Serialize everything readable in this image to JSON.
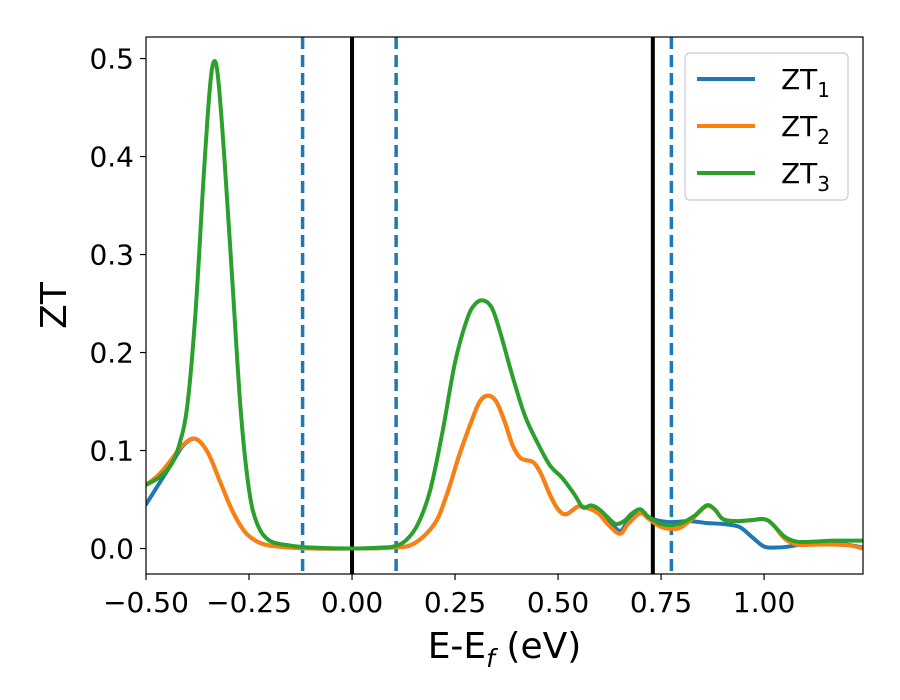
{
  "chart_data": {
    "type": "line",
    "title": "",
    "xlabel": {
      "base": "E-E",
      "sub": "f",
      "unit": " (eV)"
    },
    "ylabel": "ZT",
    "xlim": [
      -0.5,
      1.24
    ],
    "ylim": [
      -0.026,
      0.522
    ],
    "x_ticks": [
      -0.5,
      -0.25,
      0.0,
      0.25,
      0.5,
      0.75,
      1.0
    ],
    "x_tick_labels": [
      "−0.50",
      "−0.25",
      "0.00",
      "0.25",
      "0.50",
      "0.75",
      "1.00"
    ],
    "y_ticks": [
      0.0,
      0.1,
      0.2,
      0.3,
      0.4,
      0.5
    ],
    "y_tick_labels": [
      "0.0",
      "0.1",
      "0.2",
      "0.3",
      "0.4",
      "0.5"
    ],
    "grid": false,
    "legend_position": "top-right",
    "vlines": [
      {
        "x": -0.12,
        "style": "dashed",
        "color": "#1f77b4"
      },
      {
        "x": 0.0,
        "style": "solid",
        "color": "#000000"
      },
      {
        "x": 0.107,
        "style": "dashed",
        "color": "#1f77b4"
      },
      {
        "x": 0.73,
        "style": "solid",
        "color": "#000000"
      },
      {
        "x": 0.775,
        "style": "dashed",
        "color": "#1f77b4"
      }
    ],
    "series": [
      {
        "name": "ZT1",
        "label_base": "ZT",
        "label_sub": "1",
        "color": "#1f77b4",
        "points": [
          [
            -0.5,
            0.045
          ],
          [
            -0.47,
            0.065
          ],
          [
            -0.44,
            0.085
          ],
          [
            -0.41,
            0.105
          ],
          [
            -0.38,
            0.112
          ],
          [
            -0.35,
            0.098
          ],
          [
            -0.32,
            0.068
          ],
          [
            -0.29,
            0.038
          ],
          [
            -0.26,
            0.017
          ],
          [
            -0.23,
            0.007
          ],
          [
            -0.2,
            0.003
          ],
          [
            -0.15,
            0.001
          ],
          [
            -0.1,
            0.0
          ],
          [
            0.0,
            0.0
          ],
          [
            0.1,
            0.001
          ],
          [
            0.15,
            0.005
          ],
          [
            0.2,
            0.025
          ],
          [
            0.23,
            0.055
          ],
          [
            0.26,
            0.095
          ],
          [
            0.29,
            0.13
          ],
          [
            0.31,
            0.15
          ],
          [
            0.33,
            0.156
          ],
          [
            0.35,
            0.15
          ],
          [
            0.37,
            0.13
          ],
          [
            0.39,
            0.105
          ],
          [
            0.41,
            0.092
          ],
          [
            0.44,
            0.088
          ],
          [
            0.46,
            0.075
          ],
          [
            0.48,
            0.055
          ],
          [
            0.5,
            0.04
          ],
          [
            0.52,
            0.035
          ],
          [
            0.55,
            0.043
          ],
          [
            0.58,
            0.04
          ],
          [
            0.6,
            0.038
          ],
          [
            0.62,
            0.03
          ],
          [
            0.65,
            0.018
          ],
          [
            0.67,
            0.028
          ],
          [
            0.7,
            0.036
          ],
          [
            0.73,
            0.03
          ],
          [
            0.77,
            0.027
          ],
          [
            0.82,
            0.028
          ],
          [
            0.86,
            0.026
          ],
          [
            0.9,
            0.025
          ],
          [
            0.94,
            0.022
          ],
          [
            0.97,
            0.012
          ],
          [
            1.0,
            0.002
          ],
          [
            1.03,
            0.001
          ],
          [
            1.06,
            0.002
          ],
          [
            1.1,
            0.005
          ],
          [
            1.15,
            0.006
          ],
          [
            1.2,
            0.004
          ],
          [
            1.24,
            0.001
          ]
        ]
      },
      {
        "name": "ZT2",
        "label_base": "ZT",
        "label_sub": "2",
        "color": "#ff7f0e",
        "points": [
          [
            -0.5,
            0.065
          ],
          [
            -0.47,
            0.075
          ],
          [
            -0.44,
            0.09
          ],
          [
            -0.41,
            0.106
          ],
          [
            -0.38,
            0.112
          ],
          [
            -0.35,
            0.098
          ],
          [
            -0.32,
            0.068
          ],
          [
            -0.29,
            0.038
          ],
          [
            -0.26,
            0.017
          ],
          [
            -0.23,
            0.007
          ],
          [
            -0.2,
            0.003
          ],
          [
            -0.15,
            0.001
          ],
          [
            -0.1,
            0.0
          ],
          [
            0.0,
            0.0
          ],
          [
            0.1,
            0.001
          ],
          [
            0.15,
            0.005
          ],
          [
            0.2,
            0.025
          ],
          [
            0.23,
            0.055
          ],
          [
            0.26,
            0.095
          ],
          [
            0.29,
            0.13
          ],
          [
            0.31,
            0.15
          ],
          [
            0.33,
            0.156
          ],
          [
            0.35,
            0.15
          ],
          [
            0.37,
            0.13
          ],
          [
            0.39,
            0.105
          ],
          [
            0.41,
            0.092
          ],
          [
            0.44,
            0.088
          ],
          [
            0.46,
            0.075
          ],
          [
            0.48,
            0.055
          ],
          [
            0.5,
            0.04
          ],
          [
            0.52,
            0.035
          ],
          [
            0.55,
            0.043
          ],
          [
            0.58,
            0.04
          ],
          [
            0.6,
            0.035
          ],
          [
            0.62,
            0.025
          ],
          [
            0.65,
            0.015
          ],
          [
            0.67,
            0.025
          ],
          [
            0.7,
            0.036
          ],
          [
            0.72,
            0.03
          ],
          [
            0.75,
            0.022
          ],
          [
            0.78,
            0.02
          ],
          [
            0.8,
            0.022
          ],
          [
            0.83,
            0.032
          ],
          [
            0.86,
            0.043
          ],
          [
            0.88,
            0.04
          ],
          [
            0.9,
            0.03
          ],
          [
            0.93,
            0.028
          ],
          [
            0.97,
            0.029
          ],
          [
            1.0,
            0.03
          ],
          [
            1.02,
            0.025
          ],
          [
            1.05,
            0.01
          ],
          [
            1.08,
            0.004
          ],
          [
            1.12,
            0.004
          ],
          [
            1.17,
            0.004
          ],
          [
            1.21,
            0.003
          ],
          [
            1.24,
            0.0
          ]
        ]
      },
      {
        "name": "ZT3",
        "label_base": "ZT",
        "label_sub": "3",
        "color": "#2ca02c",
        "points": [
          [
            -0.5,
            0.065
          ],
          [
            -0.47,
            0.072
          ],
          [
            -0.44,
            0.085
          ],
          [
            -0.42,
            0.105
          ],
          [
            -0.4,
            0.145
          ],
          [
            -0.38,
            0.24
          ],
          [
            -0.36,
            0.38
          ],
          [
            -0.345,
            0.47
          ],
          [
            -0.335,
            0.497
          ],
          [
            -0.325,
            0.48
          ],
          [
            -0.31,
            0.4
          ],
          [
            -0.29,
            0.27
          ],
          [
            -0.27,
            0.14
          ],
          [
            -0.25,
            0.06
          ],
          [
            -0.23,
            0.025
          ],
          [
            -0.2,
            0.008
          ],
          [
            -0.15,
            0.003
          ],
          [
            -0.1,
            0.001
          ],
          [
            0.0,
            0.0
          ],
          [
            0.07,
            0.001
          ],
          [
            0.1,
            0.002
          ],
          [
            0.13,
            0.008
          ],
          [
            0.16,
            0.025
          ],
          [
            0.19,
            0.06
          ],
          [
            0.22,
            0.12
          ],
          [
            0.25,
            0.19
          ],
          [
            0.28,
            0.235
          ],
          [
            0.3,
            0.25
          ],
          [
            0.32,
            0.253
          ],
          [
            0.34,
            0.245
          ],
          [
            0.36,
            0.22
          ],
          [
            0.39,
            0.175
          ],
          [
            0.42,
            0.135
          ],
          [
            0.45,
            0.108
          ],
          [
            0.48,
            0.085
          ],
          [
            0.51,
            0.072
          ],
          [
            0.54,
            0.055
          ],
          [
            0.56,
            0.042
          ],
          [
            0.58,
            0.044
          ],
          [
            0.6,
            0.04
          ],
          [
            0.62,
            0.032
          ],
          [
            0.64,
            0.025
          ],
          [
            0.66,
            0.028
          ],
          [
            0.68,
            0.036
          ],
          [
            0.7,
            0.04
          ],
          [
            0.72,
            0.032
          ],
          [
            0.75,
            0.025
          ],
          [
            0.78,
            0.024
          ],
          [
            0.8,
            0.026
          ],
          [
            0.83,
            0.033
          ],
          [
            0.86,
            0.044
          ],
          [
            0.88,
            0.04
          ],
          [
            0.9,
            0.03
          ],
          [
            0.93,
            0.028
          ],
          [
            0.97,
            0.029
          ],
          [
            1.0,
            0.03
          ],
          [
            1.02,
            0.025
          ],
          [
            1.05,
            0.012
          ],
          [
            1.08,
            0.007
          ],
          [
            1.12,
            0.007
          ],
          [
            1.17,
            0.008
          ],
          [
            1.21,
            0.008
          ],
          [
            1.24,
            0.008
          ]
        ]
      }
    ]
  }
}
